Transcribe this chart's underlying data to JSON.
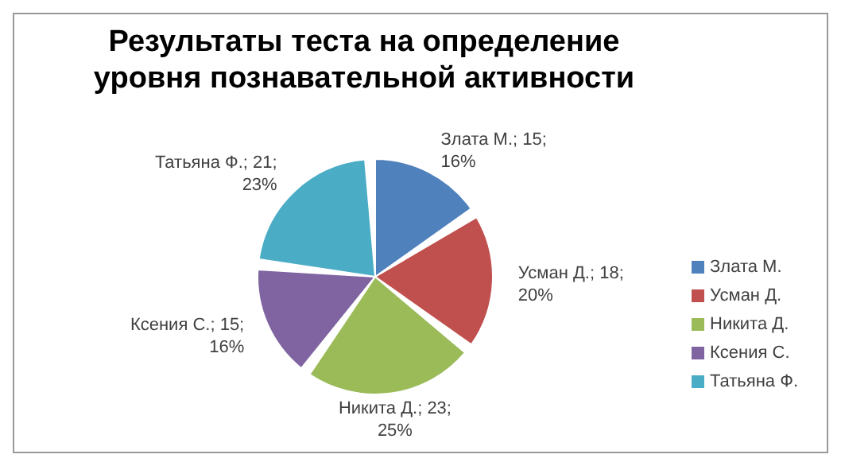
{
  "chart_data": {
    "type": "pie",
    "title": "Результаты теста на определение уровня познавательной активности",
    "categories": [
      "Злата М.",
      "Усман Д.",
      "Никита Д.",
      "Ксения С.",
      "Татьяна Ф."
    ],
    "values": [
      15,
      18,
      23,
      15,
      21
    ],
    "colors": [
      "#4f81bd",
      "#c0504d",
      "#9bbb59",
      "#8064a2",
      "#4bacc6"
    ],
    "value_labels": [
      "Злата М.; 15; 16%",
      "Усман Д.; 18; 20%",
      "Никита Д.; 23; 25%",
      "Ксения С.; 15; 16%",
      "Татьяна Ф.; 21; 23%"
    ],
    "legend": "right"
  }
}
